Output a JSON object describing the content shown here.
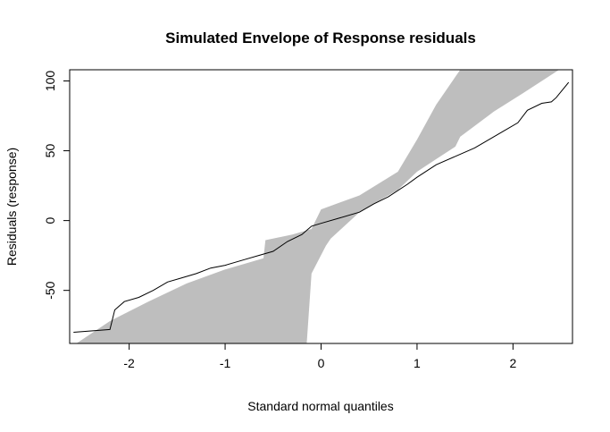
{
  "chart_data": {
    "type": "line",
    "title": "Simulated Envelope of Response residuals",
    "xlabel": "Standard normal quantiles",
    "ylabel": "Residuals (response)",
    "xlim": [
      -2.62,
      2.62
    ],
    "ylim": [
      -88,
      108
    ],
    "x_ticks": [
      "-2",
      "-1",
      "0",
      "1",
      "2"
    ],
    "y_ticks": [
      "-50",
      "0",
      "50",
      "100"
    ],
    "grid": false,
    "legend": "none",
    "colors": {
      "envelope": "#bebebe",
      "line": "#000000"
    },
    "envelope": {
      "x": [
        -2.55,
        -2.2,
        -1.8,
        -1.4,
        -1.0,
        -0.6,
        -0.58,
        -0.3,
        -0.1,
        0.0,
        0.4,
        0.8,
        1.0,
        1.2,
        1.4,
        1.45,
        1.8,
        2.1,
        2.45,
        2.48,
        2.1,
        1.8,
        1.45,
        1.4,
        1.2,
        1.0,
        0.8,
        0.4,
        0.1,
        0.05,
        -0.1,
        -0.14,
        -0.15
      ],
      "upper": [
        -88,
        -72,
        -58,
        -45,
        -35,
        -27,
        -14,
        -10,
        -6,
        8,
        18,
        35,
        58,
        83,
        103,
        108,
        108,
        108,
        108,
        108,
        91,
        78,
        60,
        53,
        44,
        35,
        22,
        6,
        -13,
        -18,
        -38,
        -78,
        -88
      ]
    },
    "series": [
      {
        "x": [
          -2.58,
          -2.2,
          -2.15,
          -2.05,
          -1.9,
          -1.75,
          -1.6,
          -1.45,
          -1.3,
          -1.15,
          -1.0,
          -0.8,
          -0.65,
          -0.5,
          -0.35,
          -0.2,
          -0.1,
          0.0,
          0.2,
          0.4,
          0.55,
          0.7,
          0.9,
          1.0,
          1.2,
          1.4,
          1.6,
          1.75,
          1.9,
          2.05,
          2.15,
          2.3,
          2.4,
          2.45,
          2.58
        ],
        "y": [
          -80,
          -78,
          -64,
          -58,
          -55,
          -50,
          -44,
          -41,
          -38,
          -34,
          -32,
          -28,
          -25,
          -22,
          -15,
          -10,
          -4,
          -2,
          2,
          6,
          12,
          17,
          26,
          31,
          40,
          46,
          52,
          58,
          64,
          70,
          79,
          84,
          85,
          88,
          99
        ]
      }
    ]
  }
}
